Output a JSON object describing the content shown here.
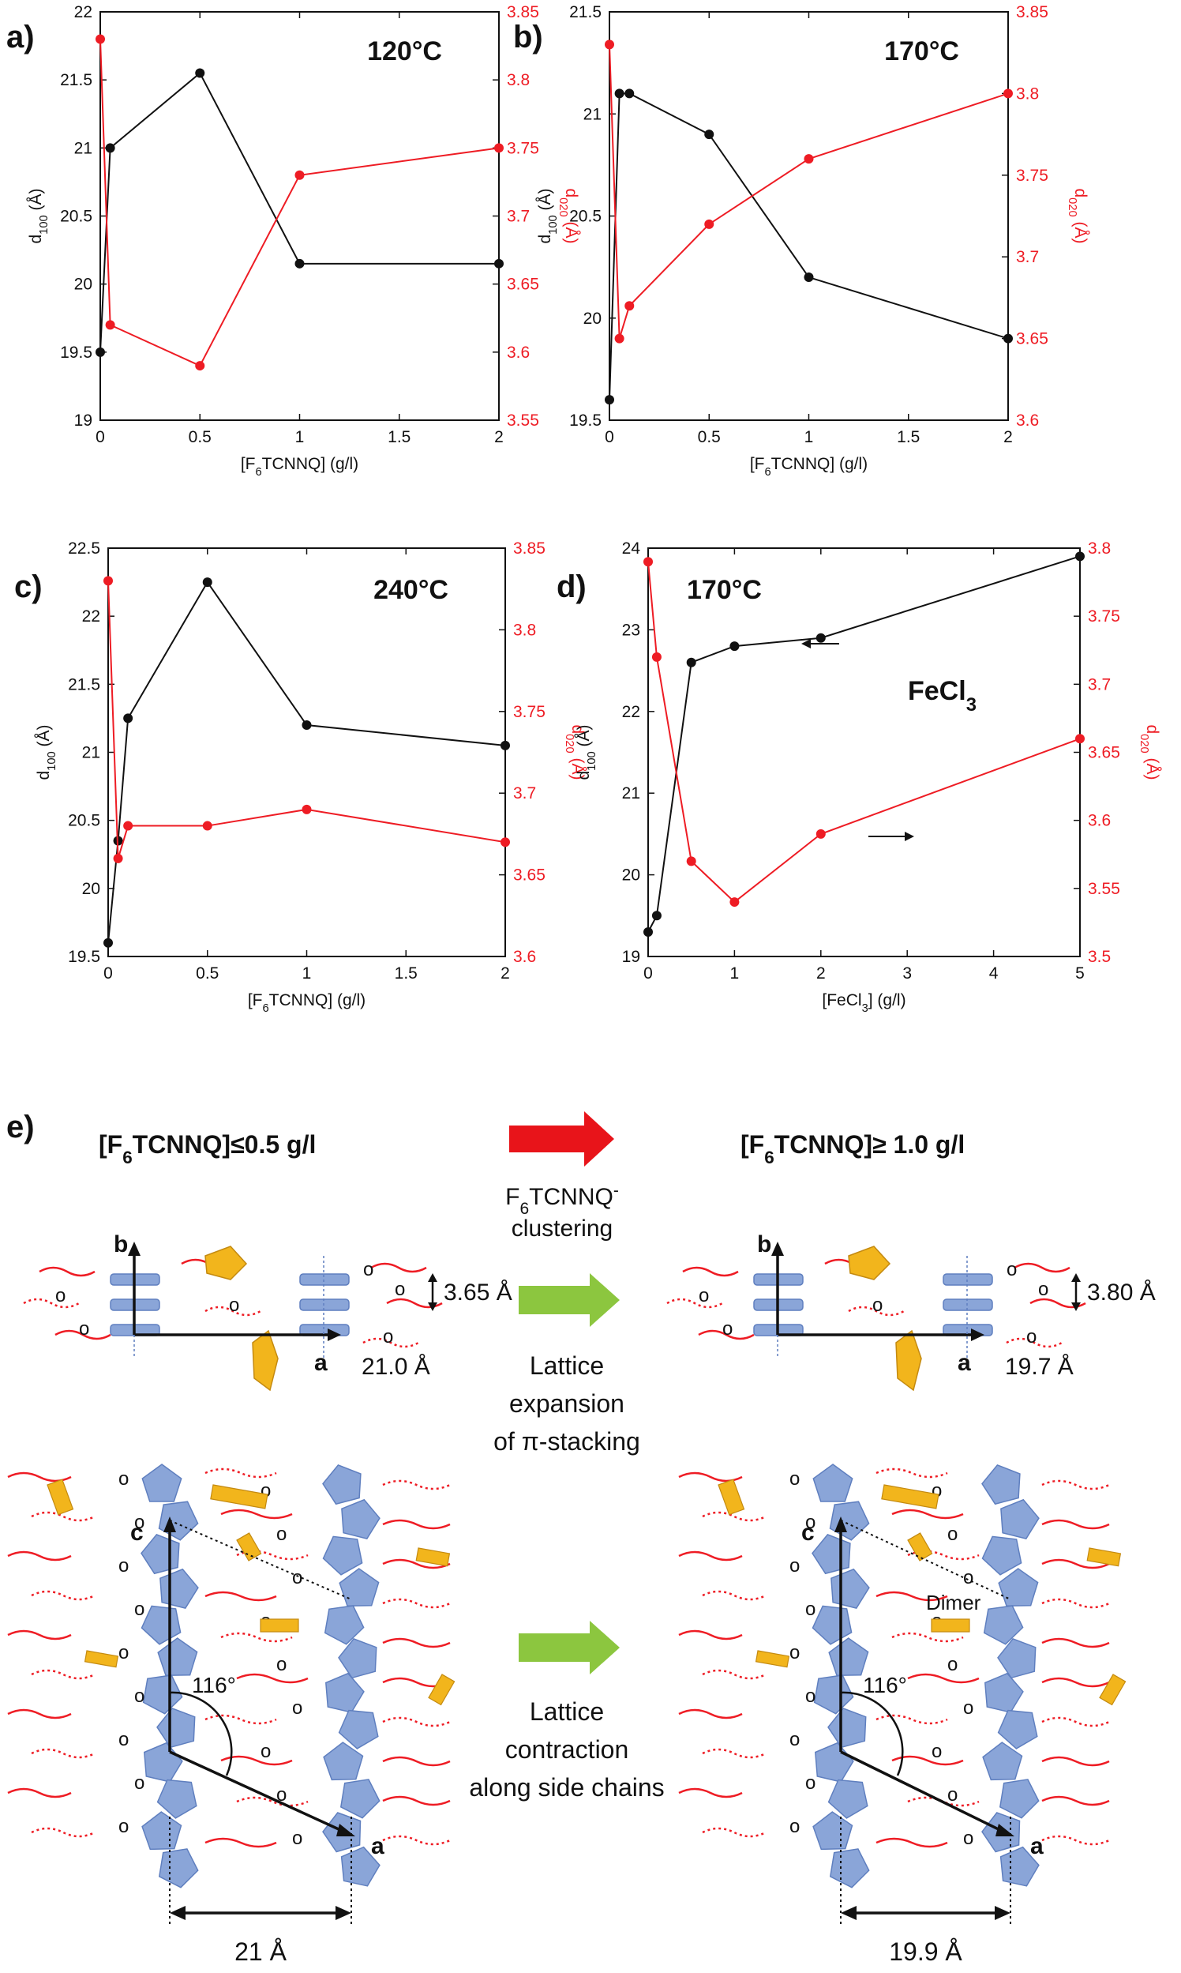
{
  "colors": {
    "black": "#111111",
    "red": "#ee1c24",
    "blue": "#8aa5d8",
    "blue_edge": "#5f7fbf",
    "orange": "#f2b51c",
    "green": "#8cc63f",
    "arrow_red": "#e8141a"
  },
  "chart_data": [
    {
      "type": "line",
      "panel": "a)",
      "title": "120°C",
      "xlabel": "[F6TCNNQ] (g/l)",
      "ylabel": "d100 (Å)",
      "y2label": "d020 (Å)",
      "xlim": [
        0,
        2
      ],
      "ylim": [
        19,
        22
      ],
      "y2lim": [
        3.55,
        3.85
      ],
      "xticks": [
        "0",
        "0.5",
        "1",
        "1.5",
        "2"
      ],
      "yticks": [
        "19",
        "19.5",
        "20",
        "20.5",
        "21",
        "21.5",
        "22"
      ],
      "y2ticks": [
        "3.55",
        "3.6",
        "3.65",
        "3.7",
        "3.75",
        "3.8",
        "3.85"
      ],
      "series": [
        {
          "name": "d100",
          "axis": "left",
          "x": [
            0,
            0.05,
            0.5,
            1,
            2
          ],
          "values": [
            19.5,
            21.0,
            21.55,
            20.15,
            20.15
          ]
        },
        {
          "name": "d020",
          "axis": "right",
          "x": [
            0,
            0.05,
            0.5,
            1,
            2
          ],
          "values": [
            3.83,
            3.62,
            3.59,
            3.73,
            3.75
          ]
        }
      ]
    },
    {
      "type": "line",
      "panel": "b)",
      "title": "170°C",
      "xlabel": "[F6TCNNQ] (g/l)",
      "ylabel": "d100 (Å)",
      "y2label": "d020 (Å)",
      "xlim": [
        0,
        2
      ],
      "ylim": [
        19.5,
        21.5
      ],
      "y2lim": [
        3.6,
        3.85
      ],
      "xticks": [
        "0",
        "0.5",
        "1",
        "1.5",
        "2"
      ],
      "yticks": [
        "19.5",
        "20",
        "20.5",
        "21",
        "21.5"
      ],
      "y2ticks": [
        "3.6",
        "3.65",
        "3.7",
        "3.75",
        "3.8",
        "3.85"
      ],
      "series": [
        {
          "name": "d100",
          "axis": "left",
          "x": [
            0,
            0.05,
            0.1,
            0.5,
            1,
            2
          ],
          "values": [
            19.6,
            21.1,
            21.1,
            20.9,
            20.2,
            19.9
          ]
        },
        {
          "name": "d020",
          "axis": "right",
          "x": [
            0,
            0.05,
            0.1,
            0.5,
            1,
            2
          ],
          "values": [
            3.83,
            3.65,
            3.67,
            3.72,
            3.76,
            3.8
          ]
        }
      ]
    },
    {
      "type": "line",
      "panel": "c)",
      "title": "240°C",
      "xlabel": "[F6TCNNQ] (g/l)",
      "ylabel": "d100 (Å)",
      "y2label": "d020 (Å)",
      "xlim": [
        0,
        2
      ],
      "ylim": [
        19.5,
        22.5
      ],
      "y2lim": [
        3.6,
        3.85
      ],
      "xticks": [
        "0",
        "0.5",
        "1",
        "1.5",
        "2"
      ],
      "yticks": [
        "19.5",
        "20",
        "20.5",
        "21",
        "21.5",
        "22",
        "22.5"
      ],
      "y2ticks": [
        "3.6",
        "3.65",
        "3.7",
        "3.75",
        "3.8",
        "3.85"
      ],
      "series": [
        {
          "name": "d100",
          "axis": "left",
          "x": [
            0,
            0.05,
            0.1,
            0.5,
            1,
            2
          ],
          "values": [
            19.6,
            20.35,
            21.25,
            22.25,
            21.2,
            21.05
          ]
        },
        {
          "name": "d020",
          "axis": "right",
          "x": [
            0,
            0.05,
            0.1,
            0.5,
            1,
            2
          ],
          "values": [
            3.83,
            3.66,
            3.68,
            3.68,
            3.69,
            3.67
          ]
        }
      ]
    },
    {
      "type": "line",
      "panel": "d)",
      "title": "170°C",
      "annotation": "FeCl3",
      "xlabel": "[FeCl3] (g/l)",
      "ylabel": "d100 (Å)",
      "y2label": "d020 (Å)",
      "xlim": [
        0,
        5
      ],
      "ylim": [
        19,
        24
      ],
      "y2lim": [
        3.5,
        3.8
      ],
      "xticks": [
        "0",
        "1",
        "2",
        "3",
        "4",
        "5"
      ],
      "yticks": [
        "19",
        "20",
        "21",
        "22",
        "23",
        "24"
      ],
      "y2ticks": [
        "3.5",
        "3.55",
        "3.6",
        "3.65",
        "3.7",
        "3.75",
        "3.8"
      ],
      "series": [
        {
          "name": "d100",
          "axis": "left",
          "x": [
            0,
            0.1,
            0.5,
            1,
            2,
            5
          ],
          "values": [
            19.3,
            19.5,
            22.6,
            22.8,
            22.9,
            23.9
          ]
        },
        {
          "name": "d020",
          "axis": "right",
          "x": [
            0,
            0.1,
            0.5,
            1,
            2,
            5
          ],
          "values": [
            3.79,
            3.72,
            3.57,
            3.54,
            3.59,
            3.66
          ]
        }
      ]
    }
  ],
  "schematic": {
    "panel_label": "e)",
    "left_heading": "[F6TCNNQ]≤0.5 g/l",
    "right_heading": "[F6TCNNQ]≥ 1.0 g/l",
    "clustering": "F6TCNNQ- clustering",
    "left_pi": "3.65 Å",
    "right_pi": "3.80 Å",
    "left_a": "21.0 Å",
    "right_a": "19.7 Å",
    "lattice_expansion": [
      "Lattice",
      "expansion",
      "of π-stacking"
    ],
    "lattice_contraction": [
      "Lattice",
      "contraction",
      "along side chains"
    ],
    "angle": "116°",
    "dimer": "Dimer",
    "left_spacing": "21 Å",
    "right_spacing": "19.9 Å",
    "axis_a": "a",
    "axis_b": "b",
    "axis_c": "c",
    "oxygen": "o"
  }
}
